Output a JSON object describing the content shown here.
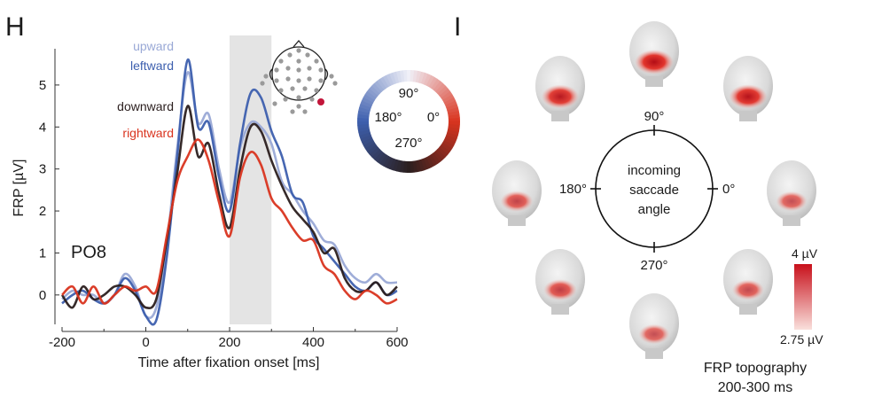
{
  "panels": {
    "left_letter": "H",
    "right_letter": "I"
  },
  "colors": {
    "upward": "#9aa9d6",
    "leftward": "#3d5fae",
    "downward": "#2b1f1f",
    "rightward": "#d9341f",
    "shade": "#e4e4e4",
    "heat_high": "#c8101b",
    "heat_low": "#f7d5d0"
  },
  "chart_data": {
    "type": "line",
    "xlabel": "Time after fixation onset [ms]",
    "ylabel": "FRP [µV]",
    "xlim": [
      -200,
      600
    ],
    "ylim": [
      -0.7,
      5.8
    ],
    "xticks": [
      "-200",
      "0",
      "200",
      "400",
      "600"
    ],
    "yticks": [
      "0",
      "1",
      "2",
      "3",
      "4",
      "5"
    ],
    "channel_label": "PO8",
    "shaded_window": [
      200,
      300
    ],
    "grid": false,
    "legend_position": "top-left",
    "x": [
      -200,
      -175,
      -150,
      -125,
      -100,
      -75,
      -50,
      -25,
      0,
      25,
      50,
      75,
      100,
      125,
      150,
      175,
      200,
      225,
      250,
      275,
      300,
      325,
      350,
      375,
      400,
      425,
      450,
      475,
      500,
      525,
      550,
      575,
      600
    ],
    "series": [
      {
        "name": "upward",
        "values": [
          -0.1,
          0.1,
          0.0,
          0.0,
          -0.2,
          0.0,
          0.5,
          0.2,
          -0.5,
          -0.3,
          1.2,
          3.5,
          5.3,
          4.1,
          4.3,
          3.0,
          2.2,
          3.5,
          4.1,
          4.0,
          3.6,
          2.7,
          2.4,
          2.0,
          1.7,
          1.3,
          1.2,
          0.7,
          0.4,
          0.3,
          0.5,
          0.3,
          0.3
        ]
      },
      {
        "name": "leftward",
        "values": [
          -0.2,
          0.0,
          0.1,
          -0.1,
          -0.2,
          0.0,
          0.4,
          0.1,
          -0.5,
          -0.6,
          0.9,
          3.3,
          5.6,
          4.0,
          4.1,
          2.8,
          2.0,
          3.6,
          4.8,
          4.7,
          3.9,
          3.3,
          2.4,
          2.2,
          1.4,
          1.1,
          0.8,
          0.5,
          0.2,
          0.1,
          0.3,
          0.0,
          0.1
        ]
      },
      {
        "name": "downward",
        "values": [
          0.0,
          -0.3,
          0.2,
          -0.1,
          0.0,
          0.2,
          0.2,
          0.0,
          -0.3,
          -0.1,
          1.3,
          2.9,
          4.5,
          3.3,
          3.6,
          2.4,
          1.6,
          3.0,
          4.0,
          3.9,
          3.2,
          2.6,
          2.1,
          1.8,
          1.5,
          1.0,
          1.1,
          0.4,
          0.1,
          0.1,
          0.3,
          0.0,
          0.2
        ]
      },
      {
        "name": "rightward",
        "values": [
          0.0,
          0.2,
          -0.2,
          0.2,
          -0.2,
          0.0,
          0.2,
          0.1,
          0.2,
          0.1,
          1.4,
          2.7,
          3.3,
          3.7,
          3.2,
          2.2,
          1.4,
          2.8,
          3.4,
          3.1,
          2.3,
          2.0,
          1.6,
          1.3,
          1.3,
          0.7,
          0.5,
          0.1,
          -0.1,
          0.1,
          0.0,
          -0.2,
          -0.1
        ]
      }
    ]
  },
  "color_ring": {
    "labels": [
      "90°",
      "180°",
      "0°",
      "270°"
    ]
  },
  "topography": {
    "angle_labels": [
      "90°",
      "180°",
      "0°",
      "270°"
    ],
    "center_lines": [
      "incoming",
      "saccade",
      "angle"
    ],
    "colorbar_max": "4 µV",
    "colorbar_min": "2.75 µV",
    "caption_lines": [
      "FRP topography",
      "200-300 ms"
    ],
    "heads": [
      {
        "angle": "90",
        "intensity": 1.0
      },
      {
        "angle": "135",
        "intensity": 0.9
      },
      {
        "angle": "45",
        "intensity": 0.95
      },
      {
        "angle": "180",
        "intensity": 0.55
      },
      {
        "angle": "0",
        "intensity": 0.45
      },
      {
        "angle": "225",
        "intensity": 0.6
      },
      {
        "angle": "315",
        "intensity": 0.5
      },
      {
        "angle": "270",
        "intensity": 0.45
      }
    ]
  }
}
